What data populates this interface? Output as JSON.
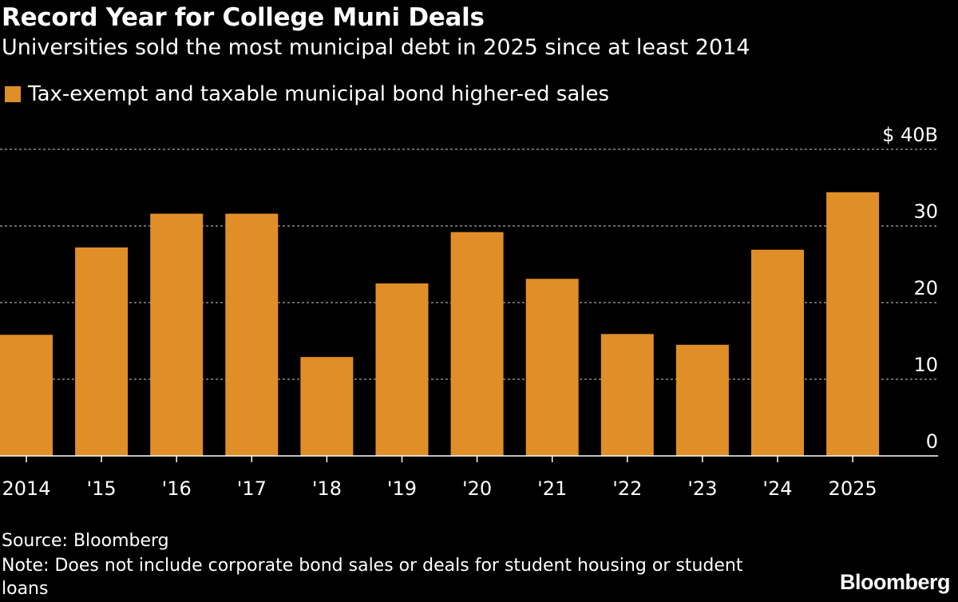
{
  "header": {
    "title": "Record Year for College Muni Deals",
    "subtitle": "Universities sold the most municipal debt in 2025 since at least 2014"
  },
  "legend": {
    "label": "Tax-exempt and taxable municipal bond higher-ed sales"
  },
  "footer": {
    "source": "Source: Bloomberg",
    "note": "Note: Does not include corporate bond sales or deals for student housing or student loans",
    "brand": "Bloomberg"
  },
  "colors": {
    "background": "#000000",
    "bar": "#e08e28",
    "gridline": "#8a8a8a",
    "text": "#ffffff"
  },
  "chart_data": {
    "type": "bar",
    "title": "Record Year for College Muni Deals",
    "subtitle": "Universities sold the most municipal debt in 2025 since at least 2014",
    "categories": [
      "2014",
      "'15",
      "'16",
      "'17",
      "'18",
      "'19",
      "'20",
      "'21",
      "'22",
      "'23",
      "'24",
      "2025"
    ],
    "series": [
      {
        "name": "Tax-exempt and taxable municipal bond higher-ed sales",
        "values": [
          15.8,
          27.2,
          31.6,
          31.6,
          12.9,
          22.5,
          29.2,
          23.1,
          15.9,
          14.5,
          26.9,
          34.4
        ]
      }
    ],
    "y_ticks": [
      0,
      10,
      20,
      30,
      40
    ],
    "y_tick_labels": [
      "0",
      "10",
      "20",
      "30",
      "$ 40B"
    ],
    "ylim": [
      0,
      40
    ],
    "xlabel": "",
    "ylabel": "",
    "grid": true,
    "y_axis_side": "right",
    "legend_position": "top-left"
  }
}
